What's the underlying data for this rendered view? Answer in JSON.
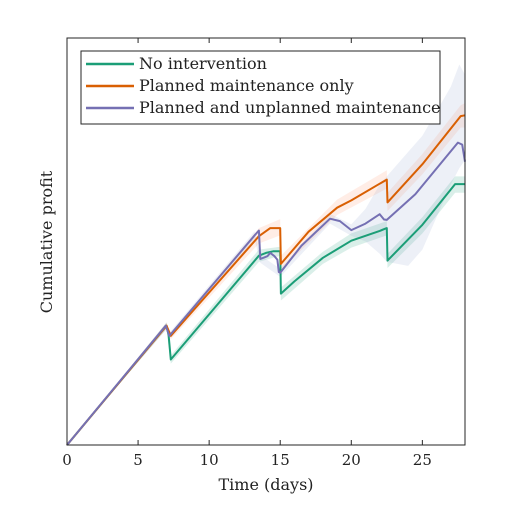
{
  "chart_data": {
    "type": "line",
    "xlabel": "Time (days)",
    "ylabel": "Cumulative profit",
    "xlim": [
      0,
      28
    ],
    "ylim": [
      0,
      100
    ],
    "xticks": [
      0,
      5,
      10,
      15,
      20,
      25
    ],
    "yticks_labeled": false,
    "grid": false,
    "legend_position": "top-left",
    "series": [
      {
        "name": "No intervention",
        "color": "#1b9e77",
        "band_color": "#1b9e77",
        "points": [
          [
            0,
            0
          ],
          [
            7,
            29.3
          ],
          [
            7.15,
            27
          ],
          [
            7.3,
            21
          ],
          [
            13.5,
            46.5
          ],
          [
            14,
            47.2
          ],
          [
            14.5,
            47.6
          ],
          [
            15,
            47.6
          ],
          [
            15.05,
            37.2
          ],
          [
            16,
            40.2
          ],
          [
            18,
            46
          ],
          [
            20,
            50.2
          ],
          [
            22,
            52.6
          ],
          [
            22.5,
            53.3
          ],
          [
            22.55,
            45.3
          ],
          [
            25,
            54.1
          ],
          [
            27.3,
            64.1
          ],
          [
            28,
            64.1
          ]
        ],
        "band": [
          [
            0,
            0,
            0
          ],
          [
            7,
            28.5,
            30.1
          ],
          [
            7.3,
            20,
            22
          ],
          [
            13.5,
            45,
            48
          ],
          [
            15,
            46.5,
            48.7
          ],
          [
            15.05,
            35.5,
            38.7
          ],
          [
            18,
            44.5,
            47.5
          ],
          [
            20,
            48.5,
            52
          ],
          [
            22.5,
            51.5,
            55
          ],
          [
            22.55,
            43.5,
            47
          ],
          [
            25,
            52,
            56
          ],
          [
            27.3,
            62,
            66
          ],
          [
            28,
            62,
            66
          ]
        ]
      },
      {
        "name": "Planned maintenance only",
        "color": "#d95f02",
        "band_color": "#fc8d62",
        "points": [
          [
            0,
            0
          ],
          [
            7,
            29.3
          ],
          [
            7.3,
            26.8
          ],
          [
            13.5,
            51.3
          ],
          [
            14.3,
            53.3
          ],
          [
            15,
            53.3
          ],
          [
            15.05,
            44.5
          ],
          [
            17,
            52.4
          ],
          [
            19,
            58.3
          ],
          [
            20,
            60.1
          ],
          [
            22,
            64.2
          ],
          [
            22.5,
            65.2
          ],
          [
            22.55,
            59.6
          ],
          [
            25,
            69
          ],
          [
            27.7,
            80.8
          ],
          [
            28,
            81
          ]
        ],
        "band": [
          [
            0,
            0,
            0
          ],
          [
            7,
            28.5,
            30.1
          ],
          [
            7.3,
            26,
            27.6
          ],
          [
            13.5,
            49.5,
            53.3
          ],
          [
            15,
            51.5,
            55.5
          ],
          [
            15.05,
            43,
            46.5
          ],
          [
            19,
            56.5,
            60.3
          ],
          [
            22.5,
            63,
            67.5
          ],
          [
            22.55,
            57.5,
            62
          ],
          [
            25,
            66.5,
            71.5
          ],
          [
            27.7,
            78,
            83.5
          ],
          [
            28,
            78,
            84
          ]
        ]
      },
      {
        "name": "Planned and unplanned maintenance",
        "color": "#7570b3",
        "band_color": "#8da0cb",
        "points": [
          [
            0,
            0
          ],
          [
            6.95,
            29.3
          ],
          [
            7.2,
            26.8
          ],
          [
            13.2,
            51.5
          ],
          [
            13.5,
            52.7
          ],
          [
            13.6,
            45.7
          ],
          [
            14.1,
            46.4
          ],
          [
            14.3,
            47.2
          ],
          [
            14.6,
            46.4
          ],
          [
            14.8,
            45.5
          ],
          [
            14.9,
            42.5
          ],
          [
            15,
            42.3
          ],
          [
            16.5,
            49
          ],
          [
            18.5,
            55.6
          ],
          [
            19.2,
            55
          ],
          [
            20,
            52.8
          ],
          [
            21,
            54.4
          ],
          [
            22,
            56.7
          ],
          [
            22.3,
            55.4
          ],
          [
            22.5,
            55.3
          ],
          [
            24.5,
            61.6
          ],
          [
            27.5,
            74.3
          ],
          [
            27.8,
            73.8
          ],
          [
            28,
            69.6
          ]
        ],
        "band": [
          [
            0,
            0,
            0
          ],
          [
            7,
            28.5,
            30.1
          ],
          [
            7.2,
            26,
            27.6
          ],
          [
            13.2,
            50.5,
            52.5
          ],
          [
            13.6,
            44.8,
            46.6
          ],
          [
            15,
            41.3,
            43.3
          ],
          [
            18.5,
            54.4,
            56.8
          ],
          [
            20,
            51.4,
            54.2
          ],
          [
            21,
            50,
            58
          ],
          [
            22,
            47,
            64
          ],
          [
            22.5,
            45,
            66
          ],
          [
            24,
            44,
            72
          ],
          [
            25,
            48,
            76
          ],
          [
            26,
            56,
            82
          ],
          [
            27,
            64,
            88
          ],
          [
            27.6,
            68,
            93.5
          ],
          [
            28,
            70,
            91
          ]
        ]
      }
    ]
  }
}
